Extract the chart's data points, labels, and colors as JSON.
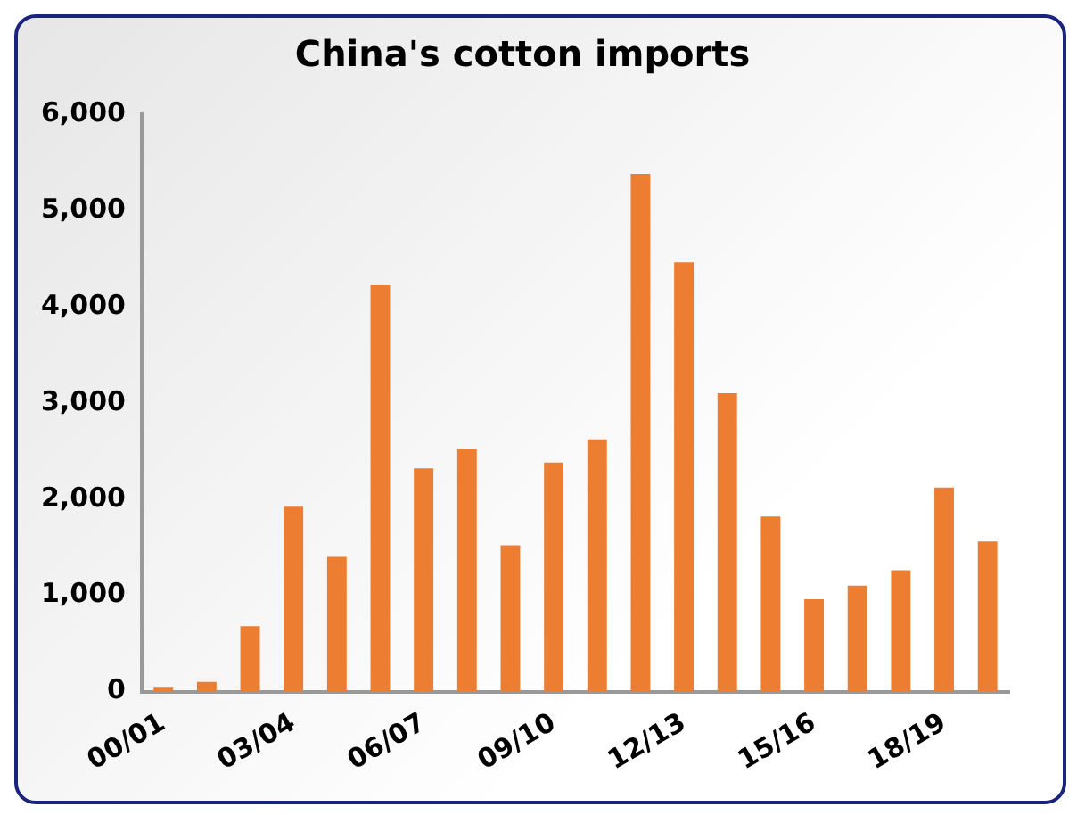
{
  "chart_data": {
    "type": "bar",
    "title": "China's cotton imports",
    "categories": [
      "00/01",
      null,
      null,
      "03/04",
      null,
      null,
      "06/07",
      null,
      null,
      "09/10",
      null,
      null,
      "12/13",
      null,
      null,
      "15/16",
      null,
      null,
      "18/19",
      null
    ],
    "values": [
      40,
      100,
      680,
      1920,
      1400,
      4220,
      2320,
      2520,
      1520,
      2380,
      2620,
      5380,
      4460,
      3100,
      1820,
      960,
      1100,
      1260,
      2120,
      1560
    ],
    "color": "#ed7d31",
    "ylim": [
      0,
      6000
    ],
    "yticks": [
      0,
      {
        "value": 1000,
        "label": "1,000"
      },
      {
        "value": 2000,
        "label": "2,000"
      },
      {
        "value": 3000,
        "label": "3,000"
      },
      {
        "value": 4000,
        "label": "4,000"
      },
      {
        "value": 5000,
        "label": "5,000"
      },
      {
        "value": 6000,
        "label": "6,000"
      }
    ],
    "grid": false,
    "legend": false
  }
}
